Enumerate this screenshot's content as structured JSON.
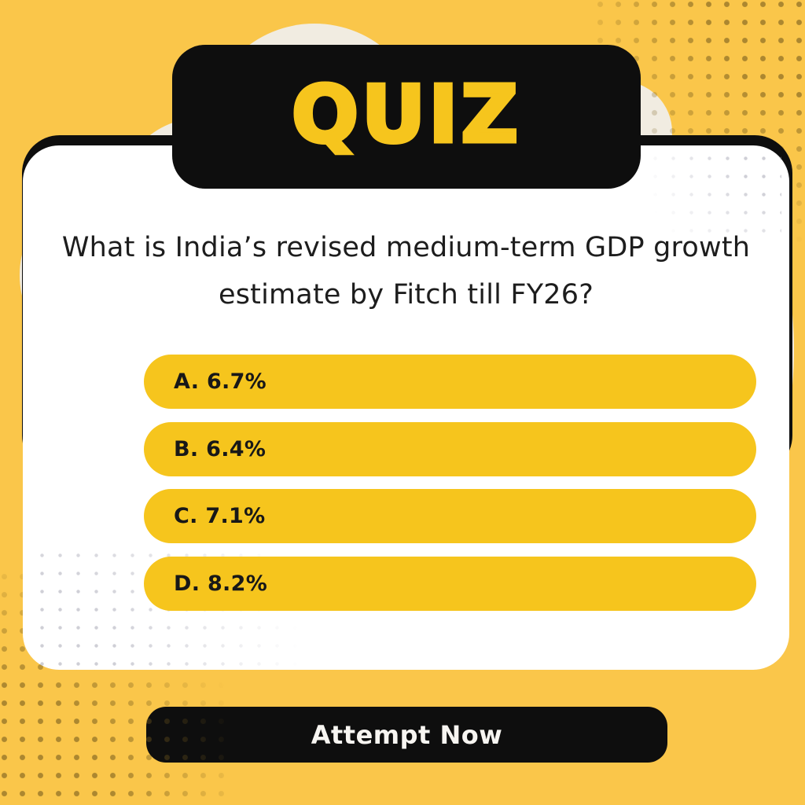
{
  "badge": {
    "label": "QUIZ"
  },
  "question": {
    "text": "What is India’s revised medium-term GDP growth estimate by Fitch till FY26?",
    "lines": [
      "What is India’s revised medium-term GDP growth",
      "estimate by Fitch till FY26?"
    ]
  },
  "options": [
    {
      "key": "A",
      "label": "A. 6.7%"
    },
    {
      "key": "B",
      "label": "B. 6.4%"
    },
    {
      "key": "C",
      "label": "C. 7.1%"
    },
    {
      "key": "D",
      "label": "D. 8.2%"
    }
  ],
  "cta": {
    "label": "Attempt Now"
  },
  "colors": {
    "background": "#FAC64A",
    "accent_yellow": "#F6C51D",
    "badge_black": "#0E0E0E",
    "card_white": "#FFFFFF",
    "cream": "#F1ECE1",
    "question_text": "#1D1D1D",
    "option_text": "#181818",
    "cta_text": "#F7F5F1"
  }
}
